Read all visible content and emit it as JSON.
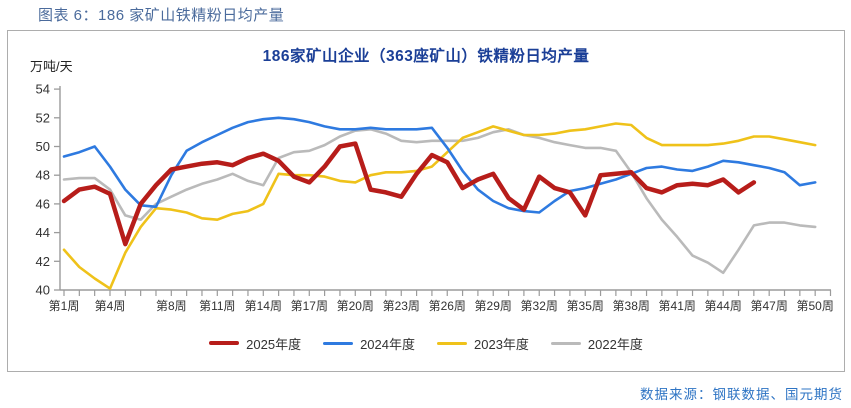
{
  "caption": "图表 6：186 家矿山铁精粉日均产量",
  "source": "数据来源：钢联数据、国元期货",
  "chart_data": {
    "type": "line",
    "title": "186家矿山企业（363座矿山）铁精粉日均产量",
    "ylabel_unit": "万吨/天",
    "ylim": [
      40,
      54
    ],
    "ytick_step": 2,
    "x_unit": "周",
    "x_range_weeks": [
      1,
      50
    ],
    "grid": false,
    "legend_position": "bottom",
    "xtick_weeks": [
      1,
      4,
      8,
      11,
      14,
      17,
      20,
      23,
      26,
      29,
      32,
      35,
      38,
      41,
      44,
      47,
      50
    ],
    "xtick_labels": [
      "第1周",
      "第4周",
      "第8周",
      "第11周",
      "第14周",
      "第17周",
      "第20周",
      "第23周",
      "第26周",
      "第29周",
      "第32周",
      "第35周",
      "第38周",
      "第41周",
      "第44周",
      "第47周",
      "第50周"
    ],
    "axis_color": "#9b9b9b",
    "series": [
      {
        "name": "2025年度",
        "color": "#b71d1a",
        "width": 4.5,
        "start_week": 1,
        "values": [
          46.2,
          47.0,
          47.2,
          46.7,
          43.2,
          46.0,
          47.3,
          48.4,
          48.6,
          48.8,
          48.9,
          48.7,
          49.2,
          49.5,
          49.0,
          47.9,
          47.5,
          48.6,
          50.0,
          50.2,
          47.0,
          46.8,
          46.5,
          48.1,
          49.4,
          48.9,
          47.1,
          47.7,
          48.1,
          46.4,
          45.6,
          47.9,
          47.1,
          46.8,
          45.2,
          48.0,
          48.1,
          48.2,
          47.1,
          46.8,
          47.3,
          47.4,
          47.3,
          47.7,
          46.8,
          47.5
        ]
      },
      {
        "name": "2024年度",
        "color": "#2e7ae0",
        "width": 2.6,
        "start_week": 1,
        "values": [
          49.3,
          49.6,
          50.0,
          48.6,
          47.0,
          45.9,
          45.8,
          48.0,
          49.7,
          50.3,
          50.8,
          51.3,
          51.7,
          51.9,
          52.0,
          51.9,
          51.7,
          51.4,
          51.2,
          51.2,
          51.3,
          51.2,
          51.2,
          51.2,
          51.3,
          49.9,
          48.3,
          47.0,
          46.2,
          45.7,
          45.5,
          45.4,
          46.2,
          46.9,
          47.1,
          47.4,
          47.7,
          48.1,
          48.5,
          48.6,
          48.4,
          48.3,
          48.6,
          49.0,
          48.9,
          48.7,
          48.5,
          48.2,
          47.3,
          47.5
        ]
      },
      {
        "name": "2023年度",
        "color": "#efc21a",
        "width": 2.6,
        "start_week": 1,
        "values": [
          42.8,
          41.6,
          40.8,
          40.1,
          42.6,
          44.4,
          45.7,
          45.6,
          45.4,
          45.0,
          44.9,
          45.3,
          45.5,
          46.0,
          48.1,
          48.0,
          48.0,
          47.9,
          47.6,
          47.5,
          48.0,
          48.2,
          48.2,
          48.3,
          48.6,
          49.6,
          50.6,
          51.0,
          51.4,
          51.1,
          50.8,
          50.8,
          50.9,
          51.1,
          51.2,
          51.4,
          51.6,
          51.5,
          50.6,
          50.1,
          50.1,
          50.1,
          50.1,
          50.2,
          50.4,
          50.7,
          50.7,
          50.5,
          50.3,
          50.1
        ]
      },
      {
        "name": "2022年度",
        "color": "#bababa",
        "width": 2.6,
        "start_week": 1,
        "values": [
          47.7,
          47.8,
          47.8,
          47.0,
          45.2,
          44.9,
          46.0,
          46.5,
          47.0,
          47.4,
          47.7,
          48.1,
          47.6,
          47.3,
          49.2,
          49.6,
          49.7,
          50.1,
          50.7,
          51.1,
          51.2,
          50.9,
          50.4,
          50.3,
          50.4,
          50.4,
          50.4,
          50.6,
          51.0,
          51.2,
          50.8,
          50.6,
          50.3,
          50.1,
          49.9,
          49.9,
          49.7,
          48.2,
          46.4,
          44.9,
          43.7,
          42.4,
          41.9,
          41.2,
          42.8,
          44.5,
          44.7,
          44.7,
          44.5,
          44.4
        ]
      }
    ]
  }
}
